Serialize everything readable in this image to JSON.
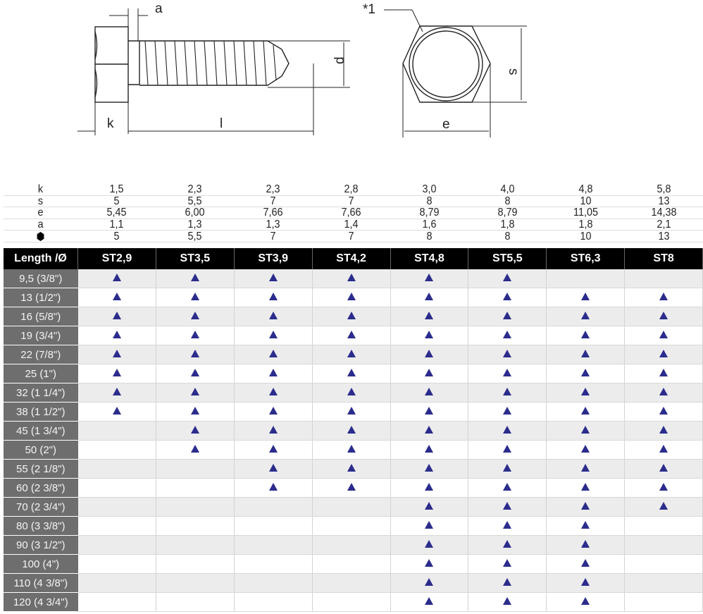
{
  "drawing": {
    "labels": {
      "a": "a",
      "d": "d",
      "k": "k",
      "l": "l",
      "note": "*1",
      "s": "s",
      "e": "e"
    }
  },
  "spec_table": {
    "rows": [
      {
        "label": "k",
        "values": [
          "1,5",
          "2,3",
          "2,3",
          "2,8",
          "3,0",
          "4,0",
          "4,8",
          "5,8"
        ]
      },
      {
        "label": "s",
        "values": [
          "5",
          "5,5",
          "7",
          "7",
          "8",
          "8",
          "10",
          "13"
        ]
      },
      {
        "label": "e",
        "values": [
          "5,45",
          "6,00",
          "7,66",
          "7,66",
          "8,79",
          "8,79",
          "11,05",
          "14,38"
        ]
      },
      {
        "label": "a",
        "values": [
          "1,1",
          "1,3",
          "1,3",
          "1,4",
          "1,6",
          "1,8",
          "1,8",
          "2,1"
        ]
      },
      {
        "label_icon": "hexagon-icon",
        "values": [
          "5",
          "5,5",
          "7",
          "7",
          "8",
          "8",
          "10",
          "13"
        ]
      }
    ]
  },
  "availability_table": {
    "header_label": "Length /Ø",
    "columns": [
      "ST2,9",
      "ST3,5",
      "ST3,9",
      "ST4,2",
      "ST4,8",
      "ST5,5",
      "ST6,3",
      "ST8"
    ],
    "marker_icon": "triangle-icon",
    "marker_color": "#2b2c8c",
    "rows": [
      {
        "length": "9,5 (3/8\")",
        "available": [
          1,
          1,
          1,
          1,
          1,
          1,
          0,
          0
        ]
      },
      {
        "length": "13 (1/2\")",
        "available": [
          1,
          1,
          1,
          1,
          1,
          1,
          1,
          1
        ]
      },
      {
        "length": "16 (5/8\")",
        "available": [
          1,
          1,
          1,
          1,
          1,
          1,
          1,
          1
        ]
      },
      {
        "length": "19 (3/4\")",
        "available": [
          1,
          1,
          1,
          1,
          1,
          1,
          1,
          1
        ]
      },
      {
        "length": "22 (7/8\")",
        "available": [
          1,
          1,
          1,
          1,
          1,
          1,
          1,
          1
        ]
      },
      {
        "length": "25 (1\")",
        "available": [
          1,
          1,
          1,
          1,
          1,
          1,
          1,
          1
        ]
      },
      {
        "length": "32 (1 1/4\")",
        "available": [
          1,
          1,
          1,
          1,
          1,
          1,
          1,
          1
        ]
      },
      {
        "length": "38 (1 1/2\")",
        "available": [
          1,
          1,
          1,
          1,
          1,
          1,
          1,
          1
        ]
      },
      {
        "length": "45 (1 3/4\")",
        "available": [
          0,
          1,
          1,
          1,
          1,
          1,
          1,
          1
        ]
      },
      {
        "length": "50 (2\")",
        "available": [
          0,
          1,
          1,
          1,
          1,
          1,
          1,
          1
        ]
      },
      {
        "length": "55 (2 1/8\")",
        "available": [
          0,
          0,
          1,
          1,
          1,
          1,
          1,
          1
        ]
      },
      {
        "length": "60 (2 3/8\")",
        "available": [
          0,
          0,
          1,
          1,
          1,
          1,
          1,
          1
        ]
      },
      {
        "length": "70 (2 3/4\")",
        "available": [
          0,
          0,
          0,
          0,
          1,
          1,
          1,
          1
        ]
      },
      {
        "length": "80 (3 3/8\")",
        "available": [
          0,
          0,
          0,
          0,
          1,
          1,
          1,
          0
        ]
      },
      {
        "length": "90 (3 1/2\")",
        "available": [
          0,
          0,
          0,
          0,
          1,
          1,
          1,
          0
        ]
      },
      {
        "length": "100 (4\")",
        "available": [
          0,
          0,
          0,
          0,
          1,
          1,
          1,
          0
        ]
      },
      {
        "length": "110 (4 3/8\")",
        "available": [
          0,
          0,
          0,
          0,
          1,
          1,
          1,
          0
        ]
      },
      {
        "length": "120 (4 3/4\")",
        "available": [
          0,
          0,
          0,
          0,
          1,
          1,
          1,
          0
        ]
      }
    ]
  }
}
